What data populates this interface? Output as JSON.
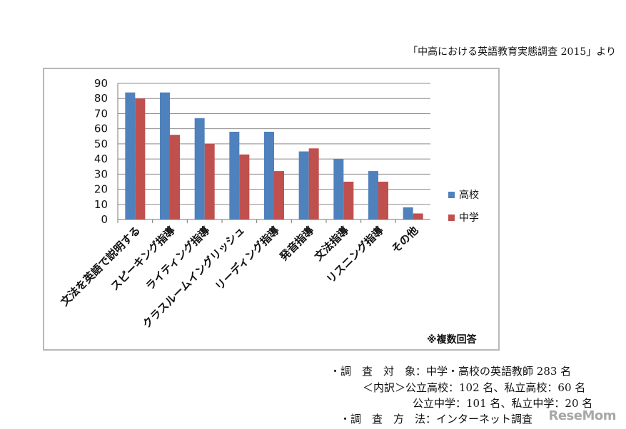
{
  "source_note": "「中高における英語教育実態調査 2015」より",
  "chart_note": "※複数回答",
  "survey_info": {
    "line1": "・調　査　対　象：中学・高校の英語教師 283 名",
    "line2": "＜内訳＞公立高校：102 名、私立高校：60 名",
    "line3": "公立中学：101 名、私立中学：20 名",
    "line4": "・調　査　方　法：インターネット調査"
  },
  "watermark": "ReseMom",
  "colors": {
    "high_school": "#4f81bd",
    "middle_school": "#c0504d",
    "grid": "#8c8c8c"
  },
  "chart_data": {
    "type": "bar",
    "title": "",
    "xlabel": "",
    "ylabel": "",
    "ylim": [
      0,
      90
    ],
    "yticks": [
      0,
      10,
      20,
      30,
      40,
      50,
      60,
      70,
      80,
      90
    ],
    "grid": true,
    "legend_position": "right",
    "categories": [
      "文法を英語で説明する",
      "スピーキング指導",
      "ライティング指導",
      "クラスルームイングリッシュ",
      "リーディング指導",
      "発音指導",
      "文法指導",
      "リスニング指導",
      "その他"
    ],
    "series": [
      {
        "name": "高校",
        "values": [
          84,
          84,
          67,
          58,
          58,
          45,
          40,
          32,
          8
        ]
      },
      {
        "name": "中学",
        "values": [
          80,
          56,
          50,
          43,
          32,
          47,
          25,
          25,
          4
        ]
      }
    ]
  }
}
